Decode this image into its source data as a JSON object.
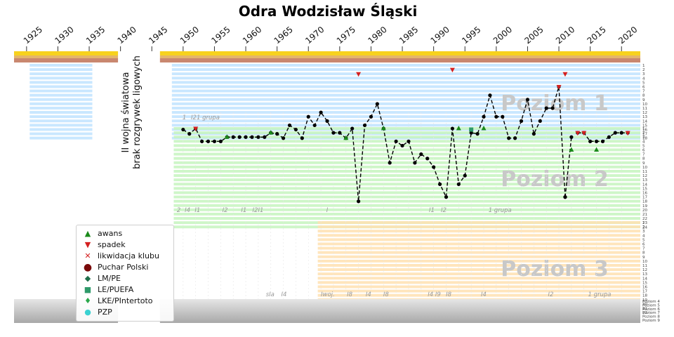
{
  "chart_data": {
    "type": "line",
    "title": "Odra Wodzisław Śląski",
    "x_ticks": [
      1925,
      1930,
      1935,
      1940,
      1945,
      1950,
      1955,
      1960,
      1965,
      1970,
      1975,
      1980,
      1985,
      1990,
      1995,
      2000,
      2005,
      2010,
      2015,
      2020
    ],
    "war_note": [
      "II wojna światowa",
      "brak rozgrywek ligowych"
    ],
    "levels": [
      {
        "label": "Poziom 1",
        "color": "#bfe3ff"
      },
      {
        "label": "Poziom 2",
        "color": "#c6f5be"
      },
      {
        "label": "Poziom 3",
        "color": "#ffe0b0"
      }
    ],
    "level1_ticks": [
      "1",
      "2",
      "3",
      "4",
      "5",
      "6",
      "7",
      "8",
      "9",
      "10",
      "11",
      "12",
      "13",
      "14",
      "15",
      "16",
      "17",
      "18"
    ],
    "level2_ticks": [
      "1",
      "2",
      "3",
      "4",
      "5",
      "6",
      "7",
      "8",
      "9",
      "10",
      "11",
      "12",
      "13",
      "14",
      "15",
      "16",
      "17",
      "18",
      "19",
      "20",
      "21",
      "22",
      "23",
      "24"
    ],
    "level3_ticks": [
      "1",
      "2",
      "3",
      "4",
      "5",
      "6",
      "7",
      "8",
      "9",
      "10",
      "11",
      "12",
      "13",
      "14",
      "15",
      "16",
      "17",
      "18",
      "19",
      "20",
      "21",
      "22"
    ],
    "lower_ticks": [
      "Poziom 4",
      "Poziom 5",
      "Poziom 6",
      "Poziom 7",
      "Poziom 8",
      "Poziom 9"
    ],
    "group_labels": [
      {
        "text": "1",
        "x": 1950.2,
        "band": "l1"
      },
      {
        "text": "I2",
        "x": 1951.7,
        "band": "l1"
      },
      {
        "text": "1 grupa",
        "x": 1954.0,
        "band": "l1"
      },
      {
        "text": "2",
        "x": 1949.3,
        "band": "l2"
      },
      {
        "text": "I4",
        "x": 1950.7,
        "band": "l2"
      },
      {
        "text": "I1",
        "x": 1952.3,
        "band": "l2"
      },
      {
        "text": "I2",
        "x": 1956.7,
        "band": "l2"
      },
      {
        "text": "I1",
        "x": 1959.7,
        "band": "l2"
      },
      {
        "text": "I2",
        "x": 1961.5,
        "band": "l2"
      },
      {
        "text": "I1",
        "x": 1962.4,
        "band": "l2"
      },
      {
        "text": "I",
        "x": 1973.0,
        "band": "l2"
      },
      {
        "text": "I1",
        "x": 1989.7,
        "band": "l2"
      },
      {
        "text": "I2",
        "x": 1991.6,
        "band": "l2"
      },
      {
        "text": "1 grupa",
        "x": 2000.6,
        "band": "l2"
      },
      {
        "text": "sIa",
        "x": 1963.9,
        "band": "l3"
      },
      {
        "text": "I4",
        "x": 1966.1,
        "band": "l3"
      },
      {
        "text": "Iwoj.",
        "x": 1973.1,
        "band": "l3"
      },
      {
        "text": "I8",
        "x": 1976.6,
        "band": "l3"
      },
      {
        "text": "I4",
        "x": 1979.6,
        "band": "l3"
      },
      {
        "text": "I8",
        "x": 1982.4,
        "band": "l3"
      },
      {
        "text": "I4 I9",
        "x": 1990.1,
        "band": "l3"
      },
      {
        "text": "I8",
        "x": 1992.4,
        "band": "l3"
      },
      {
        "text": "I4",
        "x": 1998.0,
        "band": "l3"
      },
      {
        "text": "I2",
        "x": 2008.7,
        "band": "l3"
      },
      {
        "text": "1 grupa",
        "x": 2016.5,
        "band": "l3"
      }
    ],
    "segments": [
      [
        [
          1950,
          3
        ],
        [
          1951,
          2
        ],
        [
          1952,
          0
        ],
        [
          1953,
          -3
        ],
        [
          1954,
          -3
        ],
        [
          1955,
          -3
        ],
        [
          1956,
          -3
        ],
        [
          1957,
          -2
        ],
        [
          1958,
          -2
        ],
        [
          1959,
          -2
        ],
        [
          1960,
          -2
        ],
        [
          1961,
          -2
        ],
        [
          1962,
          -2
        ],
        [
          1963,
          -2
        ],
        [
          1964,
          -1
        ],
        [
          1965,
          2
        ],
        [
          1966,
          1
        ],
        [
          1967,
          4
        ],
        [
          1968,
          3
        ],
        [
          1969,
          1
        ],
        [
          1970,
          6
        ],
        [
          1971,
          4
        ],
        [
          1972,
          7
        ],
        [
          1973,
          5
        ],
        [
          1974,
          -1
        ],
        [
          1975,
          -1
        ],
        [
          1976,
          1
        ],
        [
          1977,
          0
        ],
        [
          1978,
          -17
        ],
        [
          1979,
          4
        ],
        [
          1980,
          6
        ],
        [
          1981,
          9
        ],
        [
          1982,
          0
        ],
        [
          1983,
          -8
        ],
        [
          1984,
          -3
        ],
        [
          1985,
          -4
        ],
        [
          1986,
          -3
        ],
        [
          1987,
          -8
        ],
        [
          1988,
          -6
        ],
        [
          1989,
          -7
        ],
        [
          1990,
          -9
        ],
        [
          1991,
          -13
        ],
        [
          1992,
          -16
        ],
        [
          1993,
          0
        ],
        [
          1994,
          -13
        ],
        [
          1995,
          -11
        ],
        [
          1996,
          -1
        ],
        [
          1997,
          2
        ],
        [
          1998,
          6
        ],
        [
          1999,
          11
        ],
        [
          2000,
          6
        ],
        [
          2001,
          6
        ],
        [
          2002,
          1
        ],
        [
          2003,
          1
        ],
        [
          2004,
          5
        ],
        [
          2005,
          10
        ],
        [
          2006,
          2
        ],
        [
          2007,
          5
        ],
        [
          2008,
          8
        ],
        [
          2009,
          8
        ],
        [
          2010,
          13
        ],
        [
          2011,
          -16
        ]
      ],
      [
        [
          2011,
          -16
        ],
        [
          2012,
          -2
        ]
      ],
      [
        [
          2013,
          -1
        ],
        [
          2014,
          -1
        ],
        [
          2015,
          -3
        ],
        [
          2016,
          -3
        ],
        [
          2017,
          -3
        ],
        [
          2018,
          -2
        ],
        [
          2019,
          -1
        ],
        [
          2020,
          -1
        ],
        [
          2021,
          -1
        ]
      ]
    ],
    "markers": [
      {
        "type": "awans",
        "x": 1957,
        "y": -2
      },
      {
        "type": "awans",
        "x": 1964,
        "y": -1
      },
      {
        "type": "awans",
        "x": 1976,
        "y": 1
      },
      {
        "type": "awans",
        "x": 1982,
        "y": 0
      },
      {
        "type": "awans",
        "x": 1994,
        "y": 0
      },
      {
        "type": "awans",
        "x": 1998,
        "y": 0
      },
      {
        "type": "awans",
        "x": 2012,
        "y": -5
      },
      {
        "type": "awans",
        "x": 2016,
        "y": -5
      },
      {
        "type": "spadek",
        "x": 1952,
        "y": 0
      },
      {
        "type": "spadek",
        "x": 1978,
        "y": 16
      },
      {
        "type": "spadek",
        "x": 1993,
        "y": 17
      },
      {
        "type": "spadek",
        "x": 2010,
        "y": 13
      },
      {
        "type": "spadek",
        "x": 2011,
        "y": 16
      },
      {
        "type": "spadek",
        "x": 2013,
        "y": -1
      },
      {
        "type": "spadek",
        "x": 2014,
        "y": -1
      },
      {
        "type": "spadek",
        "x": 2021,
        "y": -1
      },
      {
        "type": "LE/PUEFA",
        "x": 1996,
        "y": 3
      }
    ],
    "legend": [
      {
        "label": "awans",
        "symbol": "▲",
        "color": "#1a8a1a"
      },
      {
        "label": "spadek",
        "symbol": "▼",
        "color": "#d42020"
      },
      {
        "label": "likwidacja klubu",
        "symbol": "✕",
        "color": "#d42020"
      },
      {
        "label": "Puchar Polski",
        "symbol": "●",
        "color": "#7a0a0a"
      },
      {
        "label": "LM/PE",
        "symbol": "◆",
        "color": "#1f6f4a"
      },
      {
        "label": "LE/PUEFA",
        "symbol": "■",
        "color": "#2f9a6a"
      },
      {
        "label": "LKE/PIntertoto",
        "symbol": "♦",
        "color": "#2aa84a"
      },
      {
        "label": "PZP",
        "symbol": "●",
        "color": "#3ad1d1"
      }
    ]
  }
}
